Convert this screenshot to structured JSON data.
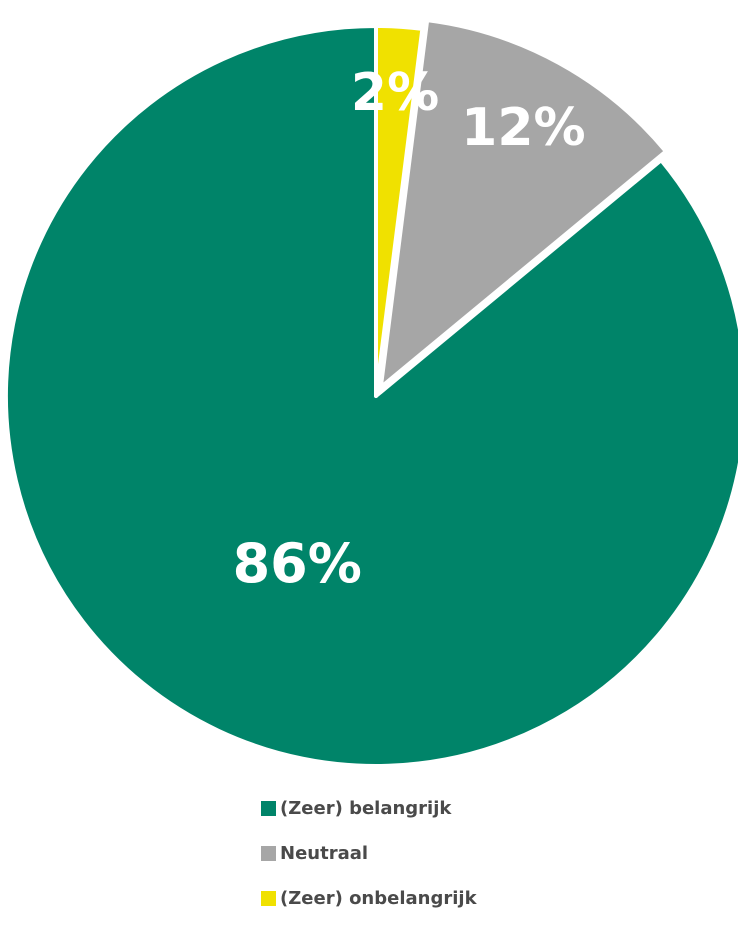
{
  "chart_data": {
    "type": "pie",
    "title": "",
    "start_angle": "top",
    "direction": "counterclockwise",
    "slices": [
      {
        "label": "(Zeer) belangrijk",
        "value": 86,
        "display": "86%",
        "color": "#008469"
      },
      {
        "label": "Neutraal",
        "value": 12,
        "display": "12%",
        "color": "#a6a6a6"
      },
      {
        "label": "(Zeer) onbelangrijk",
        "value": 2,
        "display": "2%",
        "color": "#f0e100"
      }
    ],
    "legend": {
      "placement": "bottom",
      "entries": [
        "(Zeer) belangrijk",
        "Neutraal",
        "(Zeer) onbelangrijk"
      ]
    }
  }
}
